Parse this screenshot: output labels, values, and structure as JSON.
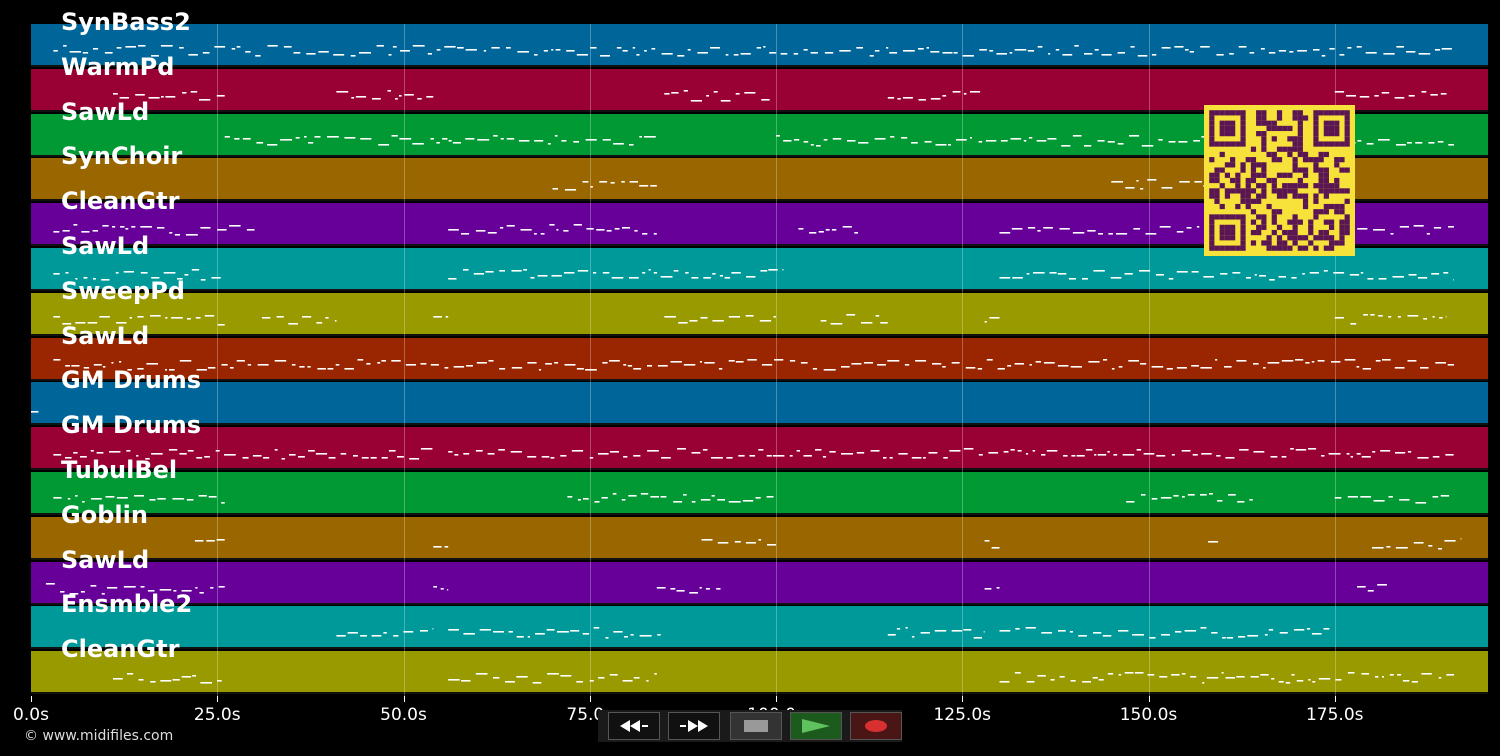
{
  "tracks": [
    {
      "label": "SynBass2",
      "color": "#006699"
    },
    {
      "label": "WarmPd",
      "color": "#990033"
    },
    {
      "label": "SawLd",
      "color": "#009933"
    },
    {
      "label": "SynChoir",
      "color": "#996600"
    },
    {
      "label": "CleanGtr",
      "color": "#660099"
    },
    {
      "label": "SawLd",
      "color": "#009999"
    },
    {
      "label": "SweepPd",
      "color": "#999900"
    },
    {
      "label": "SawLd",
      "color": "#992600"
    },
    {
      "label": "GM Drums",
      "color": "#006699"
    },
    {
      "label": "GM Drums",
      "color": "#990033"
    },
    {
      "label": "TubulBel",
      "color": "#009933"
    },
    {
      "label": "Goblin",
      "color": "#996600"
    },
    {
      "label": "SawLd",
      "color": "#660099"
    },
    {
      "label": "Ensmble2",
      "color": "#009999"
    },
    {
      "label": "CleanGtr",
      "color": "#999900"
    }
  ],
  "time_axis": {
    "max_seconds": 196,
    "ticks": [
      "0.0s",
      "25.0s",
      "50.0s",
      "75.0s",
      "100.0s",
      "125.0s",
      "150.0s",
      "175.0s"
    ]
  },
  "copyright": "© www.midifiles.com",
  "controls": [
    {
      "name": "rewind-button",
      "icon": "rewind-icon"
    },
    {
      "name": "fast-forward-button",
      "icon": "fast-forward-icon"
    },
    {
      "name": "stop-button",
      "icon": "stop-icon"
    },
    {
      "name": "play-button",
      "icon": "play-icon"
    },
    {
      "name": "record-button",
      "icon": "record-icon"
    }
  ],
  "colors": {
    "background": "#000000",
    "note": "#ffffff",
    "qr_background": "#f7e13b",
    "qr_foreground": "#5a1652"
  },
  "qr_icon": "qr-code-icon"
}
